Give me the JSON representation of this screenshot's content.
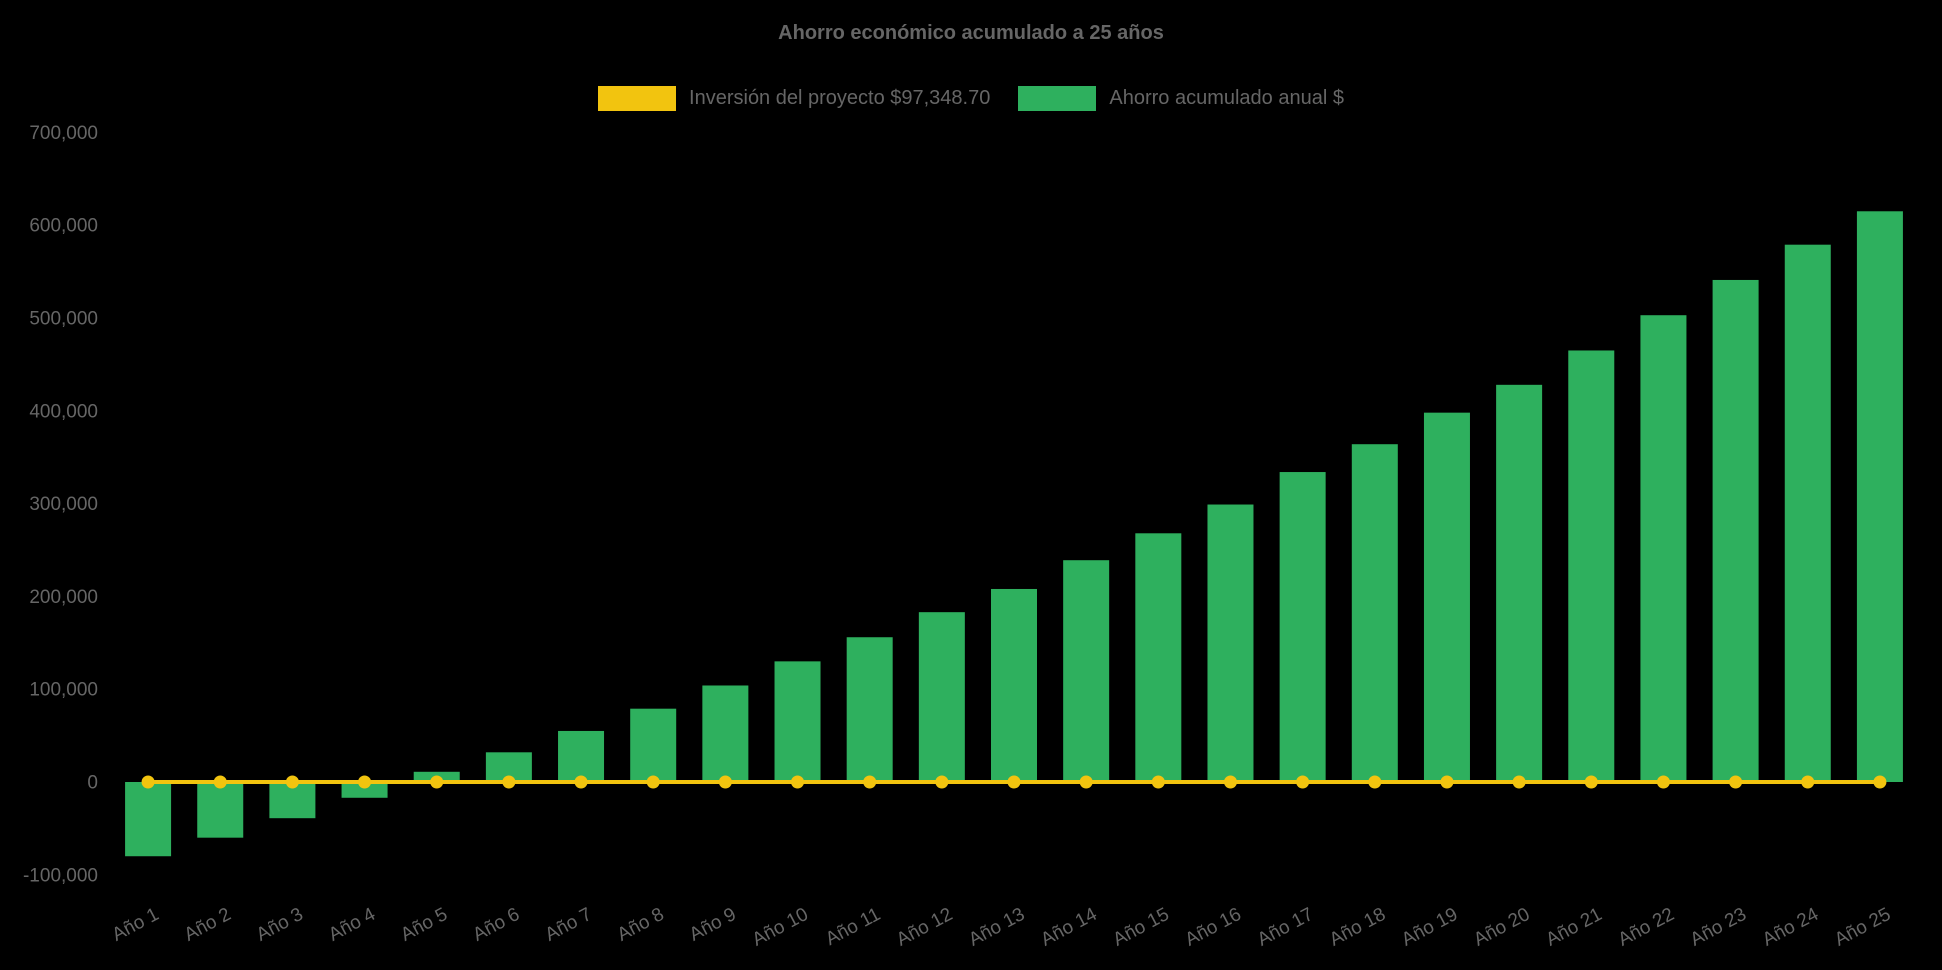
{
  "title": "Ahorro económico acumulado a 25 años",
  "legend": {
    "investment_label": "Inversión del proyecto $97,348.70",
    "savings_label": "Ahorro acumulado anual $"
  },
  "colors": {
    "background": "#000000",
    "text": "#666666",
    "bar_green": "#2eb05e",
    "line_yellow": "#f2c40f"
  },
  "chart_data": {
    "type": "bar",
    "title": "Ahorro económico acumulado a 25 años",
    "categories": [
      "Año 1",
      "Año 2",
      "Año 3",
      "Año 4",
      "Año 5",
      "Año 6",
      "Año 7",
      "Año 8",
      "Año 9",
      "Año 10",
      "Año 11",
      "Año 12",
      "Año 13",
      "Año 14",
      "Año 15",
      "Año 16",
      "Año 17",
      "Año 18",
      "Año 19",
      "Año 20",
      "Año 21",
      "Año 22",
      "Año 23",
      "Año 24",
      "Año 25"
    ],
    "series": [
      {
        "name": "Inversión del proyecto $97,348.70",
        "type": "line",
        "color": "#f2c40f",
        "values": [
          0,
          0,
          0,
          0,
          0,
          0,
          0,
          0,
          0,
          0,
          0,
          0,
          0,
          0,
          0,
          0,
          0,
          0,
          0,
          0,
          0,
          0,
          0,
          0,
          0
        ]
      },
      {
        "name": "Ahorro acumulado anual $",
        "type": "bar",
        "color": "#2eb05e",
        "values": [
          -80000,
          -60000,
          -39000,
          -17000,
          11000,
          32000,
          55000,
          79000,
          104000,
          130000,
          156000,
          183000,
          208000,
          239000,
          268000,
          299000,
          334000,
          364000,
          398000,
          428000,
          465000,
          503000,
          541000,
          579000,
          615000
        ]
      }
    ],
    "xlabel": "",
    "ylabel": "",
    "ylim": [
      -100000,
      700000
    ],
    "ytick_step": 100000,
    "grid": false,
    "legend_position": "top"
  }
}
